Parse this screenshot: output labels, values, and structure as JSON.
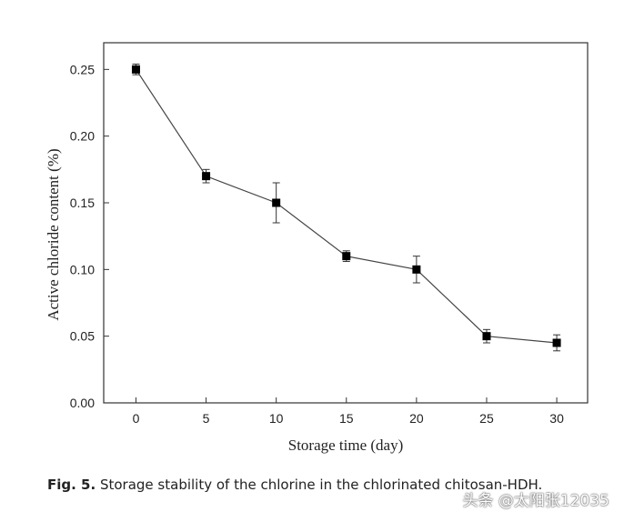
{
  "chart_data": {
    "type": "line",
    "title": "",
    "xlabel": "Storage time (day)",
    "ylabel": "Active chloride content (%)",
    "xlim": [
      -2.3,
      32.2
    ],
    "ylim": [
      0.0,
      0.27
    ],
    "xticks": [
      0,
      5,
      10,
      15,
      20,
      25,
      30
    ],
    "xtick_labels": [
      "0",
      "5",
      "10",
      "15",
      "20",
      "25",
      "30"
    ],
    "yticks": [
      0.0,
      0.05,
      0.1,
      0.15,
      0.2,
      0.25
    ],
    "ytick_labels": [
      "0.00",
      "0.05",
      "0.10",
      "0.15",
      "0.20",
      "0.25"
    ],
    "grid": false,
    "series": [
      {
        "name": "Active chloride content",
        "x": [
          0,
          5,
          10,
          15,
          20,
          25,
          30
        ],
        "y": [
          0.25,
          0.17,
          0.15,
          0.11,
          0.1,
          0.05,
          0.045
        ],
        "error": [
          0.004,
          0.005,
          0.015,
          0.004,
          0.01,
          0.005,
          0.006
        ],
        "marker": "square",
        "color": "#000000"
      }
    ]
  },
  "caption": {
    "label": "Fig. 5.",
    "text": "Storage stability of the chlorine in the chlorinated chitosan-HDH."
  },
  "watermark": {
    "text": "头条 @太阳张12035"
  }
}
